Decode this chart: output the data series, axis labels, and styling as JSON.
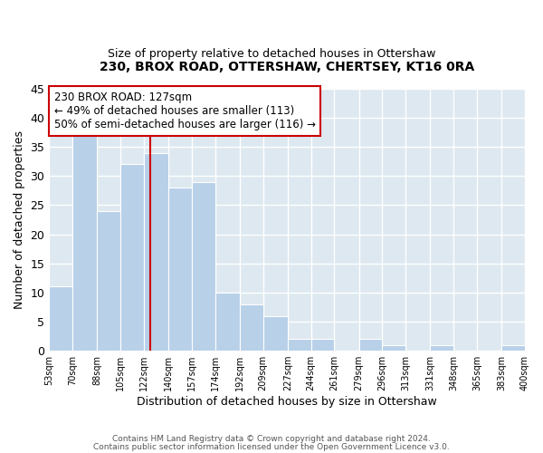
{
  "title": "230, BROX ROAD, OTTERSHAW, CHERTSEY, KT16 0RA",
  "subtitle": "Size of property relative to detached houses in Ottershaw",
  "xlabel": "Distribution of detached houses by size in Ottershaw",
  "ylabel": "Number of detached properties",
  "bar_color": "#b8d0e8",
  "bar_edgecolor": "#ffffff",
  "figure_bg": "#ffffff",
  "axes_bg": "#dde8f0",
  "grid_color": "#ffffff",
  "bins": [
    53,
    70,
    88,
    105,
    122,
    140,
    157,
    174,
    192,
    209,
    227,
    244,
    261,
    279,
    296,
    313,
    331,
    348,
    365,
    383,
    400
  ],
  "bin_labels": [
    "53sqm",
    "70sqm",
    "88sqm",
    "105sqm",
    "122sqm",
    "140sqm",
    "157sqm",
    "174sqm",
    "192sqm",
    "209sqm",
    "227sqm",
    "244sqm",
    "261sqm",
    "279sqm",
    "296sqm",
    "313sqm",
    "331sqm",
    "348sqm",
    "365sqm",
    "383sqm",
    "400sqm"
  ],
  "counts": [
    11,
    37,
    24,
    32,
    34,
    28,
    29,
    10,
    8,
    6,
    2,
    2,
    0,
    2,
    1,
    0,
    1,
    0,
    0,
    1
  ],
  "ylim": [
    0,
    45
  ],
  "yticks": [
    0,
    5,
    10,
    15,
    20,
    25,
    30,
    35,
    40,
    45
  ],
  "vline_x": 127,
  "vline_color": "#cc0000",
  "annotation_box_edgecolor": "#cc0000",
  "property_label": "230 BROX ROAD: 127sqm",
  "annotation_line1": "← 49% of detached houses are smaller (113)",
  "annotation_line2": "50% of semi-detached houses are larger (116) →",
  "footer1": "Contains HM Land Registry data © Crown copyright and database right 2024.",
  "footer2": "Contains public sector information licensed under the Open Government Licence v3.0."
}
